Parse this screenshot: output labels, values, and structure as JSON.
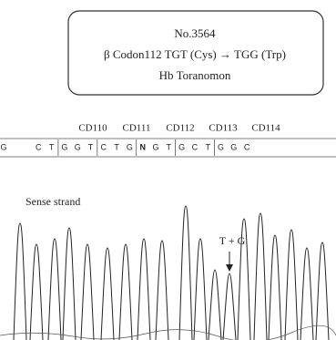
{
  "title_box": {
    "lines": [
      "No.3564",
      "β Codon112 TGT (Cys) → TGG (Trp)",
      "Hb Toranomon"
    ]
  },
  "codons": [
    "CD110",
    "CD111",
    "CD112",
    "CD113",
    "CD114"
  ],
  "sequence": [
    "G",
    "C",
    "T",
    "G",
    "G",
    "T",
    "C",
    "T",
    "G",
    "N",
    "G",
    "T",
    "G",
    "C",
    "T",
    "G",
    "G",
    "C"
  ],
  "strand_label": "Sense strand",
  "annotation": "T + G"
}
